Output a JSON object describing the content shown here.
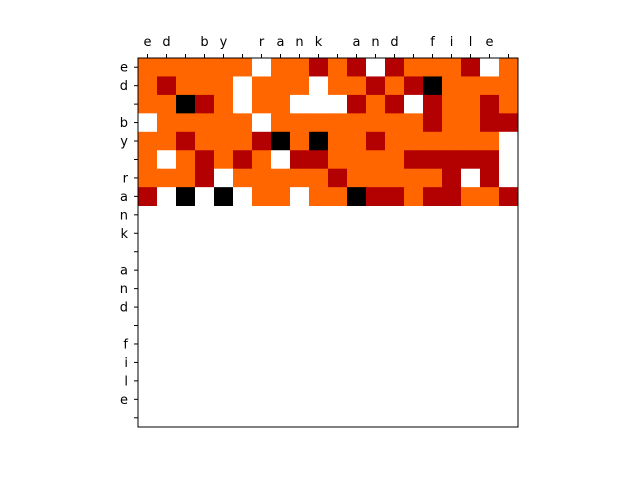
{
  "chart_data": {
    "type": "heatmap",
    "title": "",
    "xlabel": "",
    "ylabel": "",
    "x_tick_labels": [
      "e",
      "d",
      " ",
      "b",
      "y",
      " ",
      "r",
      "a",
      "n",
      "k",
      " ",
      "a",
      "n",
      "d",
      " ",
      "f",
      "i",
      "l",
      "e",
      " "
    ],
    "y_tick_labels": [
      "e",
      "d",
      " ",
      "b",
      "y",
      " ",
      "r",
      "a",
      "n",
      "k",
      " ",
      "a",
      "n",
      "d",
      " ",
      "f",
      "i",
      "l",
      "e",
      " "
    ],
    "x_axis_position": "top",
    "grid": false,
    "colormap": "gist_heat",
    "color_scale": {
      "0": "#000000",
      "1": "#b30000",
      "2": "#ff6600",
      "3": "#ffffff"
    },
    "values": [
      [
        2,
        2,
        2,
        2,
        2,
        2,
        3,
        2,
        2,
        1,
        2,
        1,
        3,
        1,
        2,
        2,
        2,
        1,
        3,
        2
      ],
      [
        2,
        1,
        2,
        2,
        2,
        3,
        2,
        2,
        2,
        3,
        2,
        2,
        1,
        2,
        1,
        0,
        2,
        2,
        2,
        2
      ],
      [
        2,
        2,
        0,
        1,
        2,
        3,
        2,
        2,
        3,
        3,
        3,
        1,
        2,
        1,
        3,
        1,
        2,
        2,
        1,
        2
      ],
      [
        3,
        2,
        2,
        2,
        2,
        2,
        3,
        2,
        2,
        2,
        2,
        2,
        2,
        2,
        2,
        1,
        2,
        2,
        1,
        1
      ],
      [
        2,
        2,
        1,
        2,
        2,
        2,
        1,
        0,
        2,
        0,
        2,
        2,
        1,
        2,
        2,
        2,
        2,
        2,
        2,
        3
      ],
      [
        2,
        3,
        2,
        1,
        2,
        1,
        2,
        3,
        1,
        1,
        2,
        2,
        2,
        2,
        1,
        1,
        1,
        1,
        1,
        3
      ],
      [
        2,
        2,
        2,
        1,
        3,
        2,
        2,
        2,
        2,
        2,
        1,
        2,
        2,
        2,
        2,
        2,
        1,
        3,
        1,
        3
      ],
      [
        1,
        3,
        0,
        3,
        0,
        3,
        2,
        2,
        3,
        2,
        2,
        0,
        1,
        1,
        2,
        1,
        1,
        2,
        2,
        1
      ],
      [
        null,
        null,
        null,
        null,
        null,
        null,
        null,
        null,
        null,
        null,
        null,
        null,
        null,
        null,
        null,
        null,
        null,
        null,
        null,
        null
      ],
      [
        null,
        null,
        null,
        null,
        null,
        null,
        null,
        null,
        null,
        null,
        null,
        null,
        null,
        null,
        null,
        null,
        null,
        null,
        null,
        null
      ],
      [
        null,
        null,
        null,
        null,
        null,
        null,
        null,
        null,
        null,
        null,
        null,
        null,
        null,
        null,
        null,
        null,
        null,
        null,
        null,
        null
      ],
      [
        null,
        null,
        null,
        null,
        null,
        null,
        null,
        null,
        null,
        null,
        null,
        null,
        null,
        null,
        null,
        null,
        null,
        null,
        null,
        null
      ],
      [
        null,
        null,
        null,
        null,
        null,
        null,
        null,
        null,
        null,
        null,
        null,
        null,
        null,
        null,
        null,
        null,
        null,
        null,
        null,
        null
      ],
      [
        null,
        null,
        null,
        null,
        null,
        null,
        null,
        null,
        null,
        null,
        null,
        null,
        null,
        null,
        null,
        null,
        null,
        null,
        null,
        null
      ],
      [
        null,
        null,
        null,
        null,
        null,
        null,
        null,
        null,
        null,
        null,
        null,
        null,
        null,
        null,
        null,
        null,
        null,
        null,
        null,
        null
      ],
      [
        null,
        null,
        null,
        null,
        null,
        null,
        null,
        null,
        null,
        null,
        null,
        null,
        null,
        null,
        null,
        null,
        null,
        null,
        null,
        null
      ],
      [
        null,
        null,
        null,
        null,
        null,
        null,
        null,
        null,
        null,
        null,
        null,
        null,
        null,
        null,
        null,
        null,
        null,
        null,
        null,
        null
      ],
      [
        null,
        null,
        null,
        null,
        null,
        null,
        null,
        null,
        null,
        null,
        null,
        null,
        null,
        null,
        null,
        null,
        null,
        null,
        null,
        null
      ],
      [
        null,
        null,
        null,
        null,
        null,
        null,
        null,
        null,
        null,
        null,
        null,
        null,
        null,
        null,
        null,
        null,
        null,
        null,
        null,
        null
      ],
      [
        null,
        null,
        null,
        null,
        null,
        null,
        null,
        null,
        null,
        null,
        null,
        null,
        null,
        null,
        null,
        null,
        null,
        null,
        null,
        null
      ]
    ]
  }
}
